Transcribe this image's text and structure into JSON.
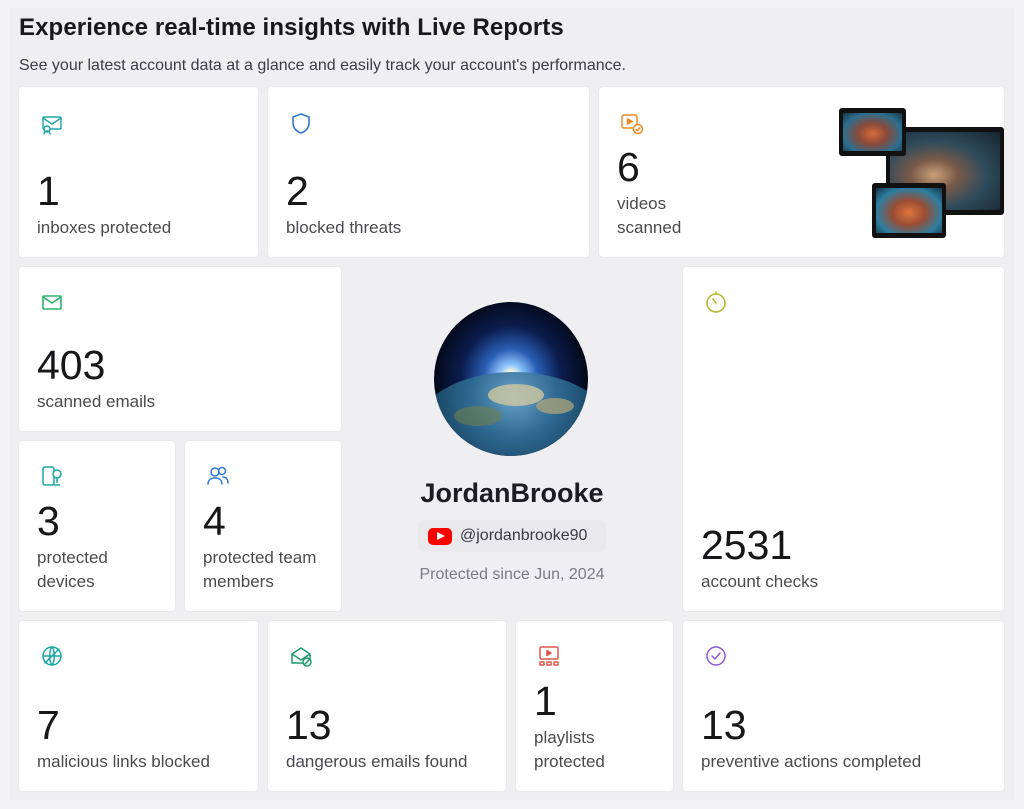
{
  "header": {
    "title": "Experience real-time insights with Live Reports",
    "subtitle": "See your latest account data at a glance and easily track your account's performance."
  },
  "cards": {
    "inboxes": {
      "value": "1",
      "label": "inboxes protected",
      "icon": "inbox-shield-icon",
      "color": "#1aa6a6"
    },
    "threats": {
      "value": "2",
      "label": "blocked threats",
      "icon": "shield-icon",
      "color": "#2f7ad6"
    },
    "videos": {
      "value": "6",
      "label1": "videos",
      "label2": "scanned",
      "icon": "video-scan-icon",
      "color": "#f08a24"
    },
    "emails": {
      "value": "403",
      "label": "scanned emails",
      "icon": "mail-icon",
      "color": "#29b36b"
    },
    "devices": {
      "value": "3",
      "label1": "protected",
      "label2": "devices",
      "icon": "device-icon",
      "color": "#1aa6a6"
    },
    "team": {
      "value": "4",
      "label1": "protected team",
      "label2": "members",
      "icon": "team-icon",
      "color": "#2f7ad6"
    },
    "checks": {
      "value": "2531",
      "label": "account checks",
      "icon": "timer-icon",
      "color": "#b7b82a"
    },
    "links": {
      "value": "7",
      "label": "malicious links blocked",
      "icon": "blocked-link-icon",
      "color": "#1aa6a6"
    },
    "dangerous": {
      "value": "13",
      "label": "dangerous emails found",
      "icon": "mail-alert-icon",
      "color": "#1f9a6a"
    },
    "playlists": {
      "value": "1",
      "label1": "playlists",
      "label2": "protected",
      "icon": "playlist-icon",
      "color": "#e0564a"
    },
    "preventive": {
      "value": "13",
      "label": "preventive actions completed",
      "icon": "check-circle-icon",
      "color": "#8b5bd6"
    }
  },
  "profile": {
    "name": "JordanBrooke",
    "handle": "@jordanbrooke90",
    "since": "Protected since Jun, 2024"
  }
}
